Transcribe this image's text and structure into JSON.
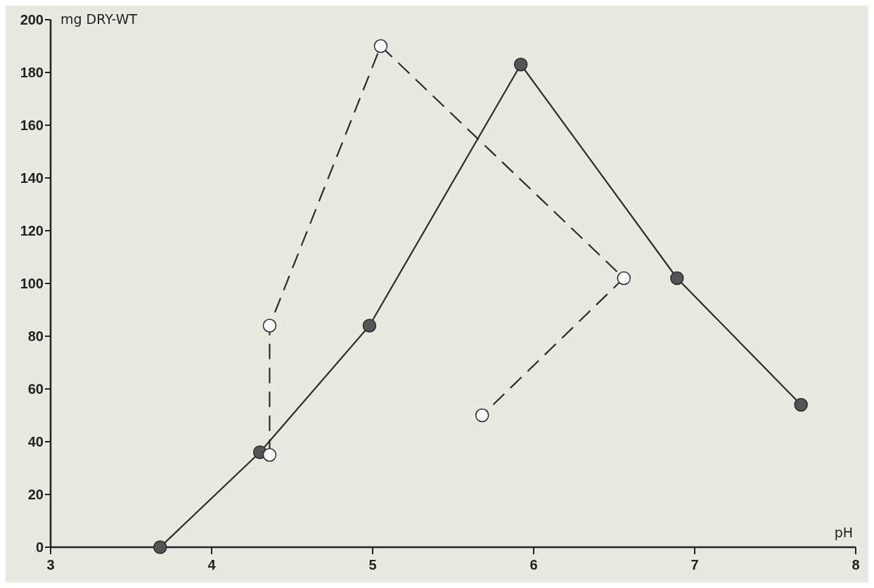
{
  "chart_data": {
    "type": "line",
    "xlabel": "pH",
    "ylabel": "mg DRY-WT",
    "xlim": [
      3,
      8
    ],
    "xticks": [
      3,
      4,
      5,
      6,
      7,
      8
    ],
    "ylim": [
      0,
      200
    ],
    "yticks": [
      0,
      20,
      40,
      60,
      80,
      100,
      120,
      140,
      160,
      180,
      200
    ],
    "grid": false,
    "marker": "circle",
    "series": [
      {
        "color": "#2b2b2b",
        "line_style": "solid",
        "x": [
          3.68,
          4.3,
          4.98,
          5.92,
          6.89,
          7.66
        ],
        "values": [
          0,
          36,
          84,
          183,
          102,
          54
        ]
      },
      {
        "color": "#2b2b2b",
        "line_style": "dashed",
        "x": [
          4.36,
          4.36,
          5.05,
          6.56,
          5.68
        ],
        "values": [
          35,
          84,
          190,
          102,
          50
        ]
      }
    ]
  }
}
